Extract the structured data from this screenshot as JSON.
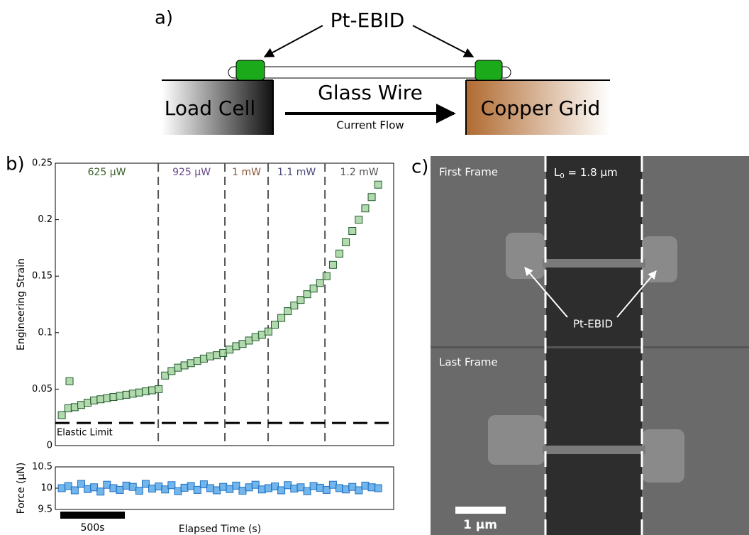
{
  "panel_a": {
    "label": "a)",
    "pt_ebid": "Pt-EBID",
    "glass_wire": "Glass Wire",
    "load_cell": "Load Cell",
    "copper_grid": "Copper Grid",
    "current_flow": "Current Flow"
  },
  "chart_data": [
    {
      "type": "scatter",
      "panel_label": "b)",
      "y_label": "Engineering Strain",
      "x": [
        50,
        100,
        110,
        150,
        200,
        250,
        300,
        350,
        400,
        450,
        500,
        550,
        600,
        650,
        700,
        750,
        800,
        850,
        900,
        950,
        1000,
        1050,
        1100,
        1150,
        1200,
        1250,
        1300,
        1350,
        1400,
        1450,
        1500,
        1550,
        1600,
        1650,
        1700,
        1750,
        1800,
        1850,
        1900,
        1950,
        2000,
        2050,
        2100,
        2150,
        2200,
        2250,
        2300,
        2350,
        2400,
        2450,
        2500
      ],
      "values": [
        0.027,
        0.033,
        0.057,
        0.034,
        0.036,
        0.038,
        0.04,
        0.041,
        0.042,
        0.043,
        0.044,
        0.045,
        0.046,
        0.047,
        0.048,
        0.049,
        0.05,
        0.062,
        0.066,
        0.069,
        0.071,
        0.073,
        0.075,
        0.077,
        0.079,
        0.08,
        0.082,
        0.085,
        0.088,
        0.09,
        0.093,
        0.096,
        0.098,
        0.101,
        0.107,
        0.113,
        0.119,
        0.124,
        0.129,
        0.134,
        0.139,
        0.144,
        0.15,
        0.16,
        0.17,
        0.18,
        0.19,
        0.2,
        0.21,
        0.22,
        0.231
      ],
      "color": "#a6d4a0",
      "edge_color": "#1f5a2c",
      "xlim": [
        0,
        2620
      ],
      "ylim": [
        0,
        0.25
      ],
      "yticks": [
        0,
        0.05,
        0.1,
        0.15,
        0.2,
        0.25
      ],
      "vlines": [
        797,
        1313,
        1648,
        2088
      ],
      "regions": [
        "625 μW",
        "925 μW",
        "1 mW",
        "1.1 mW",
        "1.2 mW"
      ],
      "region_colors": [
        "#3a5f2a",
        "#6a4a8a",
        "#8a5a3a",
        "#4a4a7a",
        "#555555"
      ],
      "hline": {
        "value": 0.02,
        "label": "Elastic Limit"
      }
    },
    {
      "type": "scatter",
      "y_label": "Force (μN)",
      "x_label": "Elapsed Time (s)",
      "x": [
        50,
        100,
        150,
        200,
        250,
        300,
        350,
        400,
        450,
        500,
        550,
        600,
        650,
        700,
        750,
        800,
        850,
        900,
        950,
        1000,
        1050,
        1100,
        1150,
        1200,
        1250,
        1300,
        1350,
        1400,
        1450,
        1500,
        1550,
        1600,
        1650,
        1700,
        1750,
        1800,
        1850,
        1900,
        1950,
        2000,
        2050,
        2100,
        2150,
        2200,
        2250,
        2300,
        2350,
        2400,
        2450,
        2500
      ],
      "values": [
        10.0,
        10.05,
        9.95,
        10.1,
        9.98,
        10.02,
        9.92,
        10.08,
        10.0,
        9.96,
        10.06,
        10.03,
        9.94,
        10.1,
        9.99,
        10.04,
        9.97,
        10.07,
        9.93,
        10.01,
        10.05,
        9.96,
        10.09,
        10.0,
        9.95,
        10.03,
        9.98,
        10.06,
        9.94,
        10.02,
        10.08,
        9.97,
        10.0,
        10.04,
        9.95,
        10.07,
        9.99,
        10.02,
        9.93,
        10.05,
        10.01,
        9.96,
        10.08,
        10.0,
        9.97,
        10.03,
        9.95,
        10.06,
        10.02,
        10.0
      ],
      "color": "#5ba9e8",
      "edge_color": "#1f70c4",
      "xlim": [
        0,
        2620
      ],
      "ylim": [
        9.5,
        10.5
      ],
      "yticks": [
        9.5,
        10,
        10.5
      ],
      "scale_bar": {
        "value": 500,
        "label": "500s"
      }
    }
  ],
  "panel_c": {
    "label": "c)",
    "first_frame": "First Frame",
    "last_frame": "Last Frame",
    "length": {
      "symbol": "L",
      "subscript": "0",
      "rest": " = 1.8 μm"
    },
    "pt_ebid": "Pt-EBID",
    "scale": "1 μm"
  }
}
